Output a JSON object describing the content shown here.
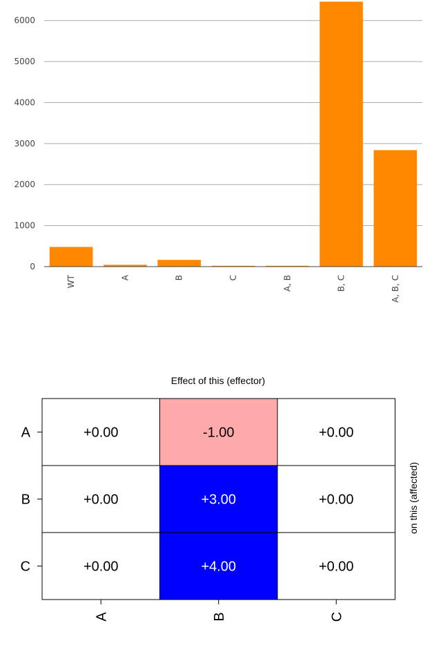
{
  "chart_data": [
    {
      "type": "bar",
      "categories": [
        "WT",
        "A",
        "B",
        "C",
        "A, B",
        "B, C",
        "A, B, C"
      ],
      "values": [
        480,
        45,
        165,
        20,
        20,
        6460,
        2840
      ],
      "ylim": [
        0,
        6500
      ],
      "yticks": [
        0,
        1000,
        2000,
        3000,
        4000,
        5000,
        6000
      ],
      "grid": true,
      "color": "#ff8800"
    },
    {
      "type": "heatmap",
      "title": "Effect of this (effector)",
      "ylabel_right": "on this (affected)",
      "rows": [
        "A",
        "B",
        "C"
      ],
      "cols": [
        "A",
        "B",
        "C"
      ],
      "values": [
        [
          0,
          -1,
          0
        ],
        [
          0,
          3,
          0
        ],
        [
          0,
          4,
          0
        ]
      ],
      "labels": [
        [
          "+0.00",
          "-1.00",
          "+0.00"
        ],
        [
          "+0.00",
          "+3.00",
          "+0.00"
        ],
        [
          "+0.00",
          "+4.00",
          "+0.00"
        ]
      ],
      "colors": {
        "zero": "#ffffff",
        "negative": "#ffaaaa",
        "positive": "#0000ff"
      }
    }
  ]
}
